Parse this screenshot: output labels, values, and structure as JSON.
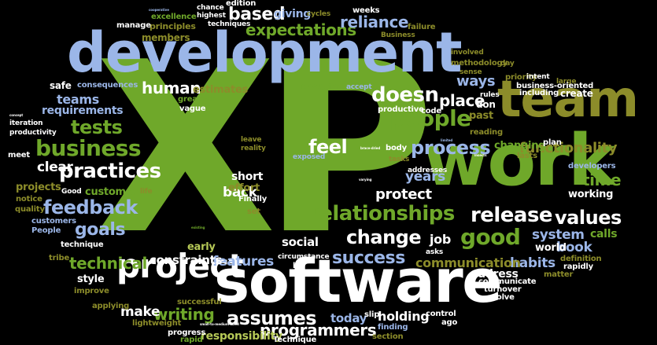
{
  "word_cloud": {
    "colors": {
      "background": "#000000",
      "green": "#6fa82a",
      "blue": "#9bb6e8",
      "olive": "#8c8c2a",
      "white": "#ffffff",
      "lime": "#b6c957"
    },
    "words": [
      {
        "text": "XP",
        "color": "green"
      },
      {
        "text": "development",
        "color": "blue"
      },
      {
        "text": "software",
        "color": "white"
      },
      {
        "text": "work",
        "color": "green"
      },
      {
        "text": "team",
        "color": "olive"
      },
      {
        "text": "project",
        "color": "white"
      },
      {
        "text": "people",
        "color": "green"
      },
      {
        "text": "business",
        "color": "green"
      },
      {
        "text": "relationships",
        "color": "green"
      },
      {
        "text": "process",
        "color": "blue"
      },
      {
        "text": "practices",
        "color": "white"
      },
      {
        "text": "tests",
        "color": "green"
      },
      {
        "text": "doesn",
        "color": "white"
      },
      {
        "text": "feel",
        "color": "white"
      },
      {
        "text": "release",
        "color": "white"
      },
      {
        "text": "values",
        "color": "white"
      },
      {
        "text": "good",
        "color": "green"
      },
      {
        "text": "change",
        "color": "white"
      },
      {
        "text": "success",
        "color": "blue"
      },
      {
        "text": "feedback",
        "color": "blue"
      },
      {
        "text": "goals",
        "color": "blue"
      },
      {
        "text": "technical",
        "color": "green"
      },
      {
        "text": "expectations",
        "color": "green"
      },
      {
        "text": "reliance",
        "color": "blue"
      },
      {
        "text": "functionality",
        "color": "olive"
      },
      {
        "text": "assumes",
        "color": "white"
      },
      {
        "text": "programmers",
        "color": "white"
      },
      {
        "text": "time",
        "color": "green"
      },
      {
        "text": "place",
        "color": "white"
      },
      {
        "text": "ways",
        "color": "blue"
      },
      {
        "text": "system",
        "color": "blue"
      },
      {
        "text": "book",
        "color": "blue"
      },
      {
        "text": "habits",
        "color": "blue"
      },
      {
        "text": "communication",
        "color": "olive"
      },
      {
        "text": "features",
        "color": "blue"
      },
      {
        "text": "constraints",
        "color": "white"
      },
      {
        "text": "clear",
        "color": "white"
      },
      {
        "text": "teams",
        "color": "blue"
      },
      {
        "text": "human",
        "color": "white"
      },
      {
        "text": "based",
        "color": "white"
      },
      {
        "text": "years",
        "color": "blue"
      },
      {
        "text": "protect",
        "color": "white"
      },
      {
        "text": "back",
        "color": "white"
      },
      {
        "text": "short",
        "color": "white"
      },
      {
        "text": "writing",
        "color": "green"
      },
      {
        "text": "make",
        "color": "white"
      },
      {
        "text": "social",
        "color": "white"
      },
      {
        "text": "job",
        "color": "white"
      },
      {
        "text": "holding",
        "color": "white"
      },
      {
        "text": "today",
        "color": "blue"
      },
      {
        "text": "responsibility",
        "color": "lime"
      },
      {
        "text": "style",
        "color": "white"
      },
      {
        "text": "address",
        "color": "white"
      },
      {
        "text": "working",
        "color": "white"
      },
      {
        "text": "world",
        "color": "white"
      },
      {
        "text": "calls",
        "color": "green"
      },
      {
        "text": "giving",
        "color": "blue"
      },
      {
        "text": "requirements",
        "color": "blue"
      },
      {
        "text": "safe",
        "color": "white"
      },
      {
        "text": "practice",
        "color": "green"
      },
      {
        "text": "estimates",
        "color": "olive"
      },
      {
        "text": "customer",
        "color": "green"
      },
      {
        "text": "projects",
        "color": "olive"
      },
      {
        "text": "effort",
        "color": "olive"
      },
      {
        "text": "early",
        "color": "lime"
      },
      {
        "text": "members",
        "color": "olive"
      },
      {
        "text": "changing",
        "color": "green"
      },
      {
        "text": "create",
        "color": "white"
      },
      {
        "text": "past",
        "color": "olive"
      },
      {
        "text": "don",
        "color": "white"
      },
      {
        "text": "edition",
        "color": "white"
      },
      {
        "text": "chance",
        "color": "white"
      },
      {
        "text": "highest",
        "color": "white"
      },
      {
        "text": "techniques",
        "color": "white"
      },
      {
        "text": "excellence",
        "color": "green"
      },
      {
        "text": "principles",
        "color": "olive"
      },
      {
        "text": "manage",
        "color": "white"
      },
      {
        "text": "weeks",
        "color": "white"
      },
      {
        "text": "cycles",
        "color": "olive"
      },
      {
        "text": "failure",
        "color": "olive"
      },
      {
        "text": "Business",
        "color": "olive"
      },
      {
        "text": "involved",
        "color": "olive"
      },
      {
        "text": "methodology",
        "color": "olive"
      },
      {
        "text": "day",
        "color": "olive"
      },
      {
        "text": "sense",
        "color": "olive"
      },
      {
        "text": "rules",
        "color": "white"
      },
      {
        "text": "priority",
        "color": "olive"
      },
      {
        "text": "intent",
        "color": "white"
      },
      {
        "text": "large",
        "color": "olive"
      },
      {
        "text": "business-oriented",
        "color": "white"
      },
      {
        "text": "including",
        "color": "white"
      },
      {
        "text": "consequences",
        "color": "blue"
      },
      {
        "text": "accept",
        "color": "blue"
      },
      {
        "text": "greatest",
        "color": "green"
      },
      {
        "text": "vague",
        "color": "white"
      },
      {
        "text": "productive",
        "color": "white"
      },
      {
        "text": "code",
        "color": "white"
      },
      {
        "text": "reading",
        "color": "olive"
      },
      {
        "text": "iteration",
        "color": "white"
      },
      {
        "text": "productivity",
        "color": "white"
      },
      {
        "text": "meet",
        "color": "white"
      },
      {
        "text": "leave",
        "color": "olive"
      },
      {
        "text": "reality",
        "color": "olive"
      },
      {
        "text": "exposed",
        "color": "blue"
      },
      {
        "text": "body",
        "color": "white"
      },
      {
        "text": "tasks",
        "color": "olive"
      },
      {
        "text": "addresses",
        "color": "white"
      },
      {
        "text": "lasts",
        "color": "olive"
      },
      {
        "text": "plan",
        "color": "white"
      },
      {
        "text": "developers",
        "color": "blue"
      },
      {
        "text": "Good",
        "color": "white"
      },
      {
        "text": "life",
        "color": "olive"
      },
      {
        "text": "notice",
        "color": "olive"
      },
      {
        "text": "quality",
        "color": "olive"
      },
      {
        "text": "Finally",
        "color": "white"
      },
      {
        "text": "set",
        "color": "olive"
      },
      {
        "text": "customers",
        "color": "blue"
      },
      {
        "text": "People",
        "color": "blue"
      },
      {
        "text": "technique",
        "color": "white"
      },
      {
        "text": "tribe",
        "color": "olive"
      },
      {
        "text": "circumstance",
        "color": "white"
      },
      {
        "text": "lot",
        "color": "white"
      },
      {
        "text": "asks",
        "color": "white"
      },
      {
        "text": "definition",
        "color": "olive"
      },
      {
        "text": "matter",
        "color": "olive"
      },
      {
        "text": "rapidly",
        "color": "white"
      },
      {
        "text": "improve",
        "color": "olive"
      },
      {
        "text": "communicate",
        "color": "white"
      },
      {
        "text": "turnover",
        "color": "white"
      },
      {
        "text": "evolve",
        "color": "white"
      },
      {
        "text": "applying",
        "color": "olive"
      },
      {
        "text": "successful",
        "color": "olive"
      },
      {
        "text": "lightweight",
        "color": "olive"
      },
      {
        "text": "progress",
        "color": "white"
      },
      {
        "text": "slip",
        "color": "white"
      },
      {
        "text": "control",
        "color": "white"
      },
      {
        "text": "ago",
        "color": "white"
      },
      {
        "text": "finding",
        "color": "blue"
      },
      {
        "text": "section",
        "color": "olive"
      },
      {
        "text": "Technique",
        "color": "white"
      },
      {
        "text": "rapid",
        "color": "green"
      },
      {
        "text": "cooperative",
        "color": "blue"
      },
      {
        "text": "concept",
        "color": "white"
      },
      {
        "text": "brace-dried",
        "color": "white"
      },
      {
        "text": "limited",
        "color": "blue"
      },
      {
        "text": "insects",
        "color": "white"
      },
      {
        "text": "varying",
        "color": "white"
      },
      {
        "text": "existing",
        "color": "green"
      },
      {
        "text": "small-to-medium-sized",
        "color": "white"
      }
    ]
  }
}
